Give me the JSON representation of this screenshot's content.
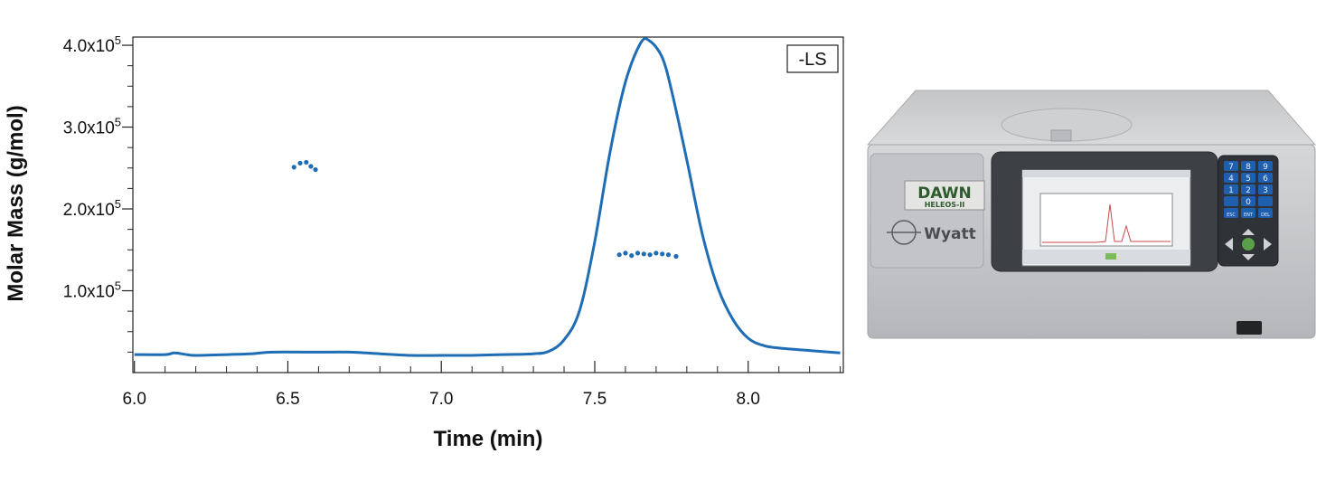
{
  "chart_data": {
    "type": "line",
    "xlabel": "Time (min)",
    "ylabel": "Molar Mass (g/mol)",
    "xlim": [
      5.995,
      8.31
    ],
    "ylim": [
      0,
      410000
    ],
    "x_ticks": [
      6.0,
      6.5,
      7.0,
      7.5,
      8.0
    ],
    "x_tick_labels": [
      "6.0",
      "6.5",
      "7.0",
      "7.5",
      "8.0"
    ],
    "y_ticks": [
      {
        "value": 100000,
        "mantissa": "1.0x10",
        "exp": "5"
      },
      {
        "value": 200000,
        "mantissa": "2.0x10",
        "exp": "5"
      },
      {
        "value": 300000,
        "mantissa": "3.0x10",
        "exp": "5"
      },
      {
        "value": 400000,
        "mantissa": "4.0x10",
        "exp": "5"
      }
    ],
    "legend": {
      "label": "-LS",
      "position": "top-right"
    },
    "grid": false,
    "series": [
      {
        "name": "-LS",
        "kind": "line",
        "color": "#1e6db5",
        "x": [
          6.0,
          6.1,
          6.13,
          6.17,
          6.2,
          6.3,
          6.38,
          6.45,
          6.6,
          6.7,
          6.8,
          6.9,
          7.0,
          7.1,
          7.2,
          7.3,
          7.35,
          7.4,
          7.45,
          7.5,
          7.55,
          7.6,
          7.65,
          7.68,
          7.72,
          7.75,
          7.8,
          7.85,
          7.9,
          7.95,
          8.0,
          8.05,
          8.1,
          8.2,
          8.3
        ],
        "y": [
          22000,
          22000,
          24000,
          22000,
          21000,
          22000,
          23000,
          25000,
          25000,
          25000,
          23000,
          21000,
          21000,
          21000,
          22000,
          23000,
          26000,
          40000,
          75000,
          160000,
          270000,
          355000,
          403000,
          405000,
          385000,
          345000,
          260000,
          170000,
          105000,
          65000,
          42000,
          33000,
          30000,
          27000,
          24000
        ]
      },
      {
        "name": "",
        "kind": "scatter",
        "color": "#1e6db5",
        "x": [
          6.52,
          6.54,
          6.56,
          6.575,
          6.59,
          7.58,
          7.6,
          7.62,
          7.64,
          7.66,
          7.68,
          7.7,
          7.72,
          7.74,
          7.765
        ],
        "y": [
          251000,
          256000,
          257000,
          252000,
          248000,
          144000,
          146000,
          143000,
          146000,
          145000,
          144000,
          146000,
          145000,
          144000,
          142000
        ]
      }
    ]
  },
  "instrument": {
    "brand_line1": "DAWN",
    "brand_line2": "HELEOS-II",
    "maker": "Wyatt",
    "keypad_keys": [
      "7",
      "8",
      "9",
      "4",
      "5",
      "6",
      "1",
      "2",
      "3",
      "",
      "0",
      "",
      "ESC",
      "ENT",
      "DEL"
    ],
    "colors": {
      "body": "#c9cacc",
      "panel": "#3a3d42",
      "keys": "#1f5fb0",
      "badge_text": "#2e5a2e"
    }
  }
}
